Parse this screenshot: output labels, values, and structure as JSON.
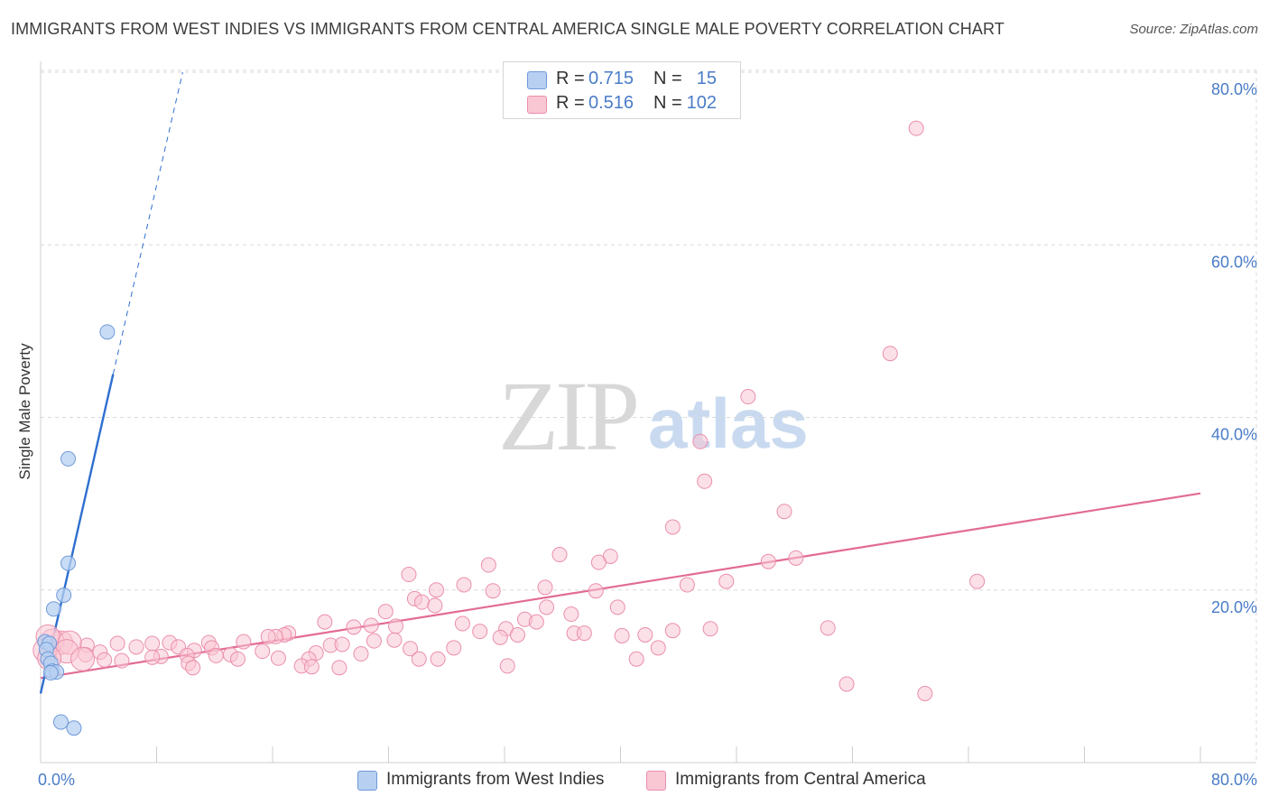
{
  "header": {
    "title": "IMMIGRANTS FROM WEST INDIES VS IMMIGRANTS FROM CENTRAL AMERICA SINGLE MALE POVERTY CORRELATION CHART",
    "source": "Source: ZipAtlas.com"
  },
  "watermark": {
    "zip": "ZIP",
    "atlas": "atlas"
  },
  "legend": {
    "r_label": "R =",
    "n_label": "N =",
    "series": [
      {
        "name": "Immigrants from West Indies",
        "r": "0.715",
        "n": "15",
        "fill": "#b7d0f1",
        "stroke": "#6f9ad8"
      },
      {
        "name": "Immigrants from Central America",
        "r": "0.516",
        "n": "102",
        "fill": "#f9c6d4",
        "stroke": "#ea8fac"
      }
    ]
  },
  "colors": {
    "blue_line": "#2e6fd0",
    "pink_line": "#e26b94",
    "tick_text": "#4a7cc8",
    "grid": "#d9d9d9"
  },
  "chart_data": {
    "type": "scatter",
    "title": "IMMIGRANTS FROM WEST INDIES VS IMMIGRANTS FROM CENTRAL AMERICA SINGLE MALE POVERTY CORRELATION CHART",
    "xlabel": "",
    "ylabel": "Single Male Poverty",
    "xlim": [
      0,
      80
    ],
    "ylim": [
      0,
      80
    ],
    "x_tick_labels": [
      "0.0%",
      "80.0%"
    ],
    "y_ticks": [
      20,
      40,
      60,
      80
    ],
    "y_tick_labels": [
      "20.0%",
      "40.0%",
      "60.0%",
      "80.0%"
    ],
    "grid": true,
    "series": [
      {
        "name": "Immigrants from West Indies",
        "points": [
          [
            4.6,
            49.9
          ],
          [
            1.9,
            35.2
          ],
          [
            1.9,
            23.1
          ],
          [
            1.6,
            19.4
          ],
          [
            0.9,
            17.8
          ],
          [
            0.3,
            14.0
          ],
          [
            0.6,
            13.8
          ],
          [
            0.4,
            13.1
          ],
          [
            0.5,
            12.0
          ],
          [
            0.7,
            11.5
          ],
          [
            0.8,
            10.6
          ],
          [
            1.1,
            10.5
          ],
          [
            0.7,
            10.4
          ],
          [
            1.4,
            4.7
          ],
          [
            2.3,
            4.0
          ]
        ],
        "trend": {
          "x0": 0.0,
          "y0": 8.0,
          "x1": 5.0,
          "y1": 45.0
        },
        "trend_extension": {
          "x0": 5.0,
          "y0": 45.0,
          "x1": 9.8,
          "y1": 80.0
        }
      },
      {
        "name": "Immigrants from Central America",
        "points": [
          [
            60.4,
            73.5
          ],
          [
            58.6,
            47.4
          ],
          [
            48.8,
            42.4
          ],
          [
            45.5,
            37.2
          ],
          [
            45.8,
            32.6
          ],
          [
            51.3,
            29.1
          ],
          [
            43.6,
            27.3
          ],
          [
            35.8,
            24.1
          ],
          [
            39.3,
            23.9
          ],
          [
            52.1,
            23.7
          ],
          [
            50.2,
            23.3
          ],
          [
            38.5,
            23.2
          ],
          [
            30.9,
            22.9
          ],
          [
            25.4,
            21.8
          ],
          [
            64.6,
            21.0
          ],
          [
            47.3,
            21.0
          ],
          [
            44.6,
            20.6
          ],
          [
            29.2,
            20.6
          ],
          [
            34.8,
            20.3
          ],
          [
            27.3,
            20.0
          ],
          [
            31.2,
            19.9
          ],
          [
            38.3,
            19.9
          ],
          [
            25.8,
            19.0
          ],
          [
            26.3,
            18.6
          ],
          [
            27.2,
            18.2
          ],
          [
            34.9,
            18.0
          ],
          [
            39.8,
            18.0
          ],
          [
            23.8,
            17.5
          ],
          [
            36.6,
            17.2
          ],
          [
            19.6,
            16.3
          ],
          [
            33.4,
            16.6
          ],
          [
            34.2,
            16.3
          ],
          [
            29.1,
            16.1
          ],
          [
            22.8,
            15.9
          ],
          [
            24.5,
            15.8
          ],
          [
            21.6,
            15.7
          ],
          [
            32.1,
            15.5
          ],
          [
            54.3,
            15.6
          ],
          [
            46.2,
            15.5
          ],
          [
            43.6,
            15.3
          ],
          [
            30.3,
            15.2
          ],
          [
            36.8,
            15.0
          ],
          [
            37.5,
            15.0
          ],
          [
            17.1,
            15.0
          ],
          [
            16.8,
            14.8
          ],
          [
            16.2,
            14.6
          ],
          [
            15.7,
            14.6
          ],
          [
            40.1,
            14.7
          ],
          [
            41.7,
            14.8
          ],
          [
            32.9,
            14.8
          ],
          [
            24.4,
            14.2
          ],
          [
            23.0,
            14.1
          ],
          [
            31.7,
            14.5
          ],
          [
            14.0,
            14.0
          ],
          [
            11.6,
            13.9
          ],
          [
            8.9,
            13.9
          ],
          [
            7.7,
            13.8
          ],
          [
            5.3,
            13.8
          ],
          [
            3.2,
            13.6
          ],
          [
            1.4,
            13.9
          ],
          [
            0.8,
            14.1
          ],
          [
            0.5,
            14.6
          ],
          [
            2.0,
            13.9
          ],
          [
            6.6,
            13.4
          ],
          [
            9.5,
            13.4
          ],
          [
            11.8,
            13.3
          ],
          [
            20.0,
            13.6
          ],
          [
            20.8,
            13.7
          ],
          [
            25.5,
            13.2
          ],
          [
            28.5,
            13.3
          ],
          [
            42.6,
            13.3
          ],
          [
            10.6,
            13.0
          ],
          [
            15.3,
            12.9
          ],
          [
            19.0,
            12.7
          ],
          [
            22.1,
            12.6
          ],
          [
            4.1,
            12.8
          ],
          [
            3.1,
            12.5
          ],
          [
            1.8,
            12.9
          ],
          [
            0.3,
            13.0
          ],
          [
            0.6,
            12.1
          ],
          [
            13.1,
            12.5
          ],
          [
            10.1,
            12.4
          ],
          [
            12.1,
            12.4
          ],
          [
            8.3,
            12.3
          ],
          [
            7.7,
            12.2
          ],
          [
            13.6,
            12.0
          ],
          [
            16.4,
            12.1
          ],
          [
            26.1,
            12.0
          ],
          [
            27.4,
            12.0
          ],
          [
            41.1,
            12.0
          ],
          [
            18.5,
            12.0
          ],
          [
            5.6,
            11.8
          ],
          [
            4.4,
            11.9
          ],
          [
            2.9,
            12.0
          ],
          [
            10.2,
            11.5
          ],
          [
            18.0,
            11.2
          ],
          [
            18.7,
            11.1
          ],
          [
            20.6,
            11.0
          ],
          [
            10.5,
            11.0
          ],
          [
            32.2,
            11.2
          ],
          [
            55.6,
            9.1
          ],
          [
            61.0,
            8.0
          ]
        ],
        "trend": {
          "x0": 0.0,
          "y0": 9.8,
          "x1": 80.0,
          "y1": 31.2
        }
      }
    ]
  }
}
